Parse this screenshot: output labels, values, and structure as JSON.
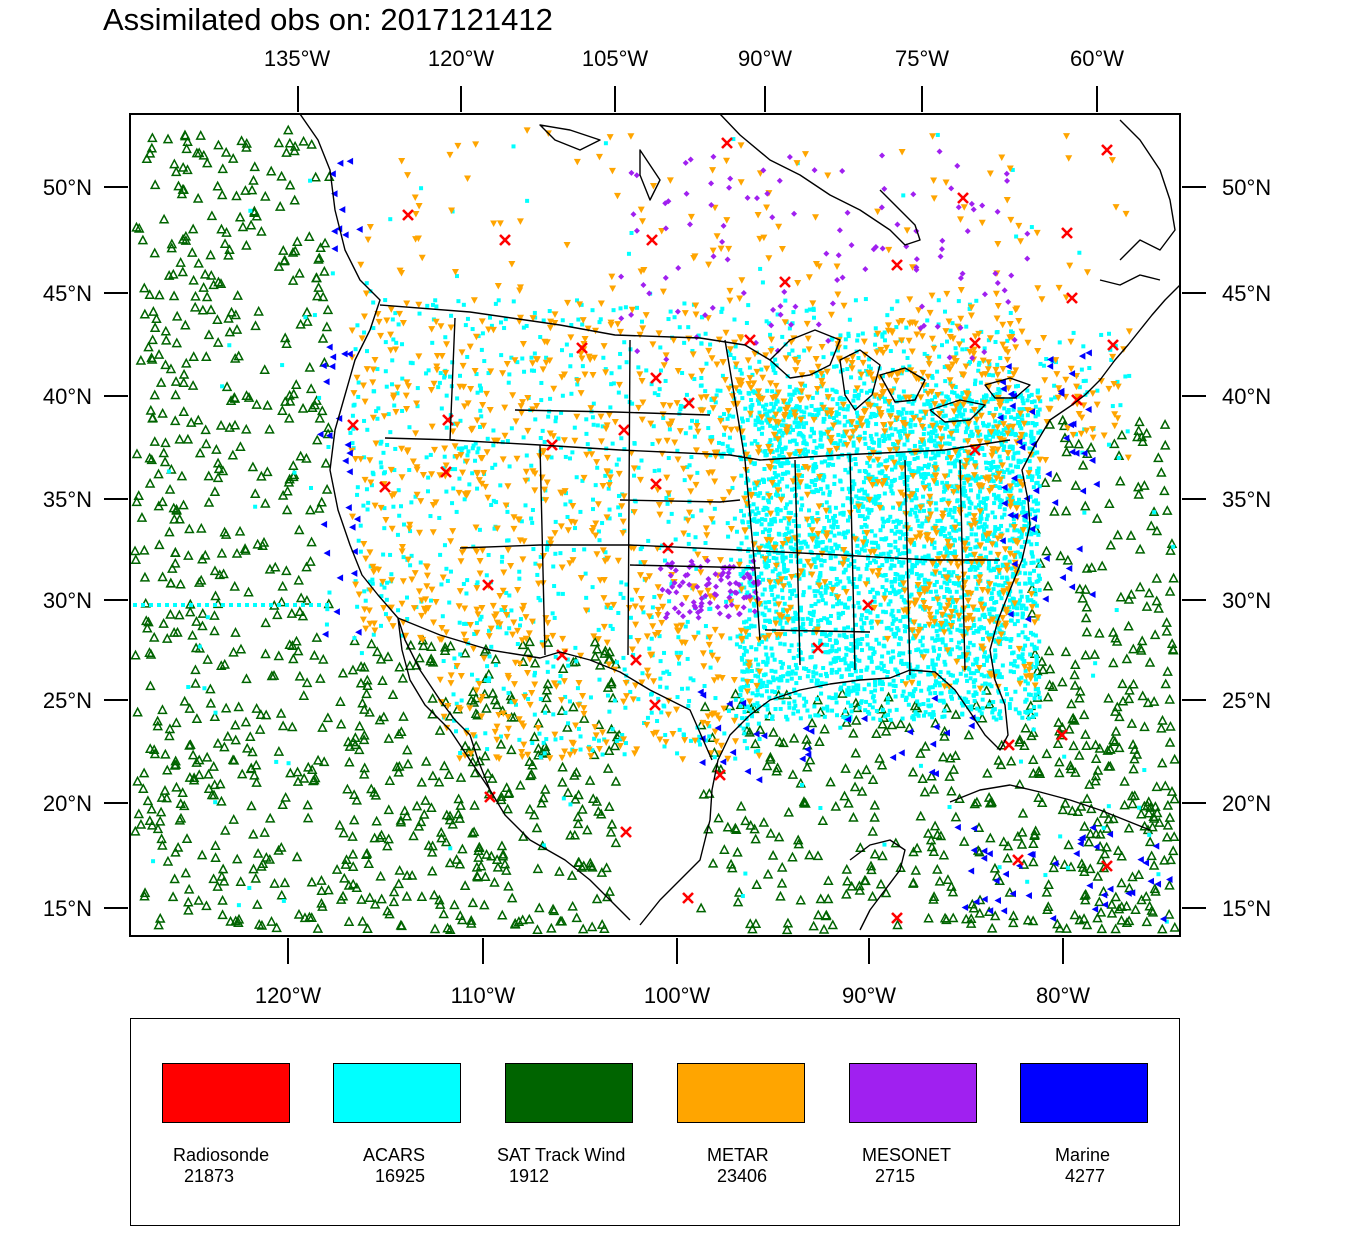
{
  "title": "Assimilated obs on: 2017121412",
  "top_lon_labels": [
    "135°W",
    "120°W",
    "105°W",
    "90°W",
    "75°W",
    "60°W"
  ],
  "bottom_lon_labels": [
    "120°W",
    "110°W",
    "100°W",
    "90°W",
    "80°W"
  ],
  "lat_labels": [
    "50°N",
    "45°N",
    "40°N",
    "35°N",
    "30°N",
    "25°N",
    "20°N",
    "15°N"
  ],
  "map_frame": {
    "grid": "off"
  },
  "legend": [
    {
      "name": "Radiosonde",
      "count": "21873",
      "color": "#ff0000",
      "marker": "x-marker-icon"
    },
    {
      "name": "ACARS",
      "count": "16925",
      "color": "#00ffff",
      "marker": "square-dot-icon"
    },
    {
      "name": "SAT Track Wind",
      "count": "1912",
      "color": "#006400",
      "marker": "triangle-up-icon"
    },
    {
      "name": "METAR",
      "count": "23406",
      "color": "#ffa500",
      "marker": "triangle-down-icon"
    },
    {
      "name": "MESONET",
      "count": "2715",
      "color": "#a020f0",
      "marker": "diamond-icon"
    },
    {
      "name": "Marine",
      "count": "4277",
      "color": "#0000ff",
      "marker": "triangle-left-icon"
    }
  ]
}
